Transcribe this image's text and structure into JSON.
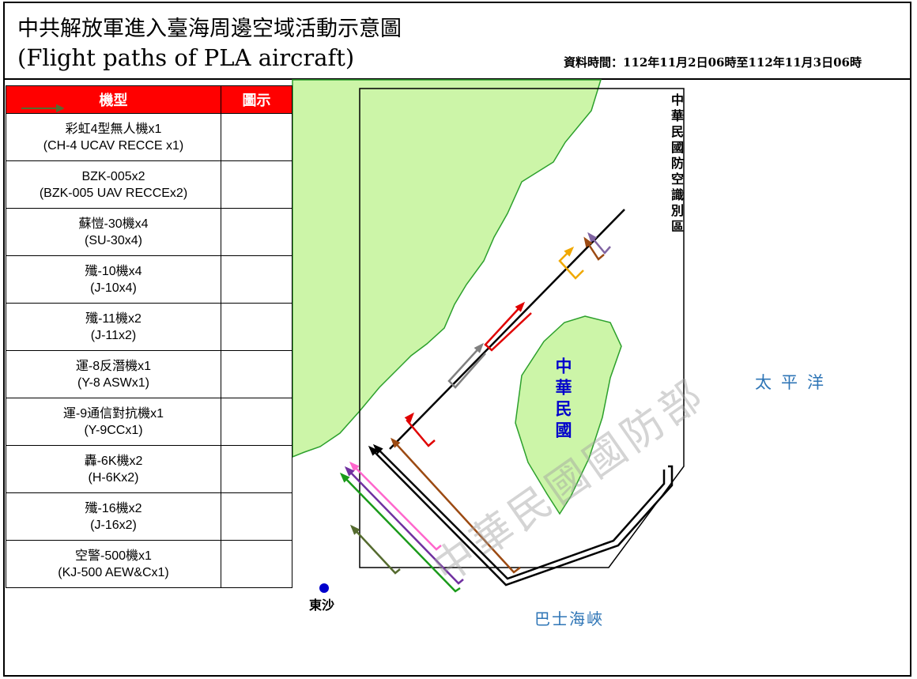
{
  "header": {
    "title": "中共解放軍進入臺海周邊空域活動示意圖",
    "subtitle": "(Flight paths of PLA aircraft)",
    "data_time": "資料時間：112年11月2日06時至112年11月3日06時"
  },
  "legend": {
    "headers": [
      "機型",
      "圖示"
    ],
    "rows": [
      {
        "name": "彩虹4型無人機x1",
        "name_en": "(CH-4 UCAV RECCE x1)",
        "color": "#8064a2"
      },
      {
        "name": "BZK-005x2",
        "name_en": "(BZK-005 UAV RECCEx2)",
        "color": "#9c4a12"
      },
      {
        "name": "蘇愷-30機x4",
        "name_en": "(SU-30x4)",
        "color": "#f0a800"
      },
      {
        "name": "殲-10機x4",
        "name_en": "(J-10x4)",
        "color": "#e00000"
      },
      {
        "name": "殲-11機x2",
        "name_en": "(J-11x2)",
        "color": "#808080"
      },
      {
        "name": "運-8反潛機x1",
        "name_en": "(Y-8 ASWx1)",
        "color": "#000000"
      },
      {
        "name": "運-9通信對抗機x1",
        "name_en": "(Y-9CCx1)",
        "color": "#ff66cc"
      },
      {
        "name": "轟-6K機x2",
        "name_en": "(H-6Kx2)",
        "color": "#7030a0"
      },
      {
        "name": "殲-16機x2",
        "name_en": "(J-16x2)",
        "color": "#1a9a1a"
      },
      {
        "name": "空警-500機x1",
        "name_en": "(KJ-500 AEW&Cx1)",
        "color": "#556b2f"
      }
    ]
  },
  "map_labels": {
    "adiz": "中華民國防空識別區",
    "ocean": "太平洋",
    "taiwan": "中華民國",
    "strait": "巴士海峽",
    "dongsha": "東沙",
    "watermark": "中華民國國防部"
  }
}
